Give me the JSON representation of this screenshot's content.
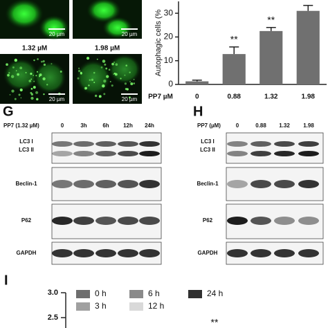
{
  "micrographs": {
    "labels": [
      "1.32 µM",
      "1.98 µM"
    ],
    "scale_bar": "20 µm"
  },
  "chart_data": [
    {
      "type": "bar",
      "y_label": "Autophagic cells (%",
      "x_label": "PP7 µM",
      "categories": [
        "0",
        "0.88",
        "1.32",
        "1.98"
      ],
      "values": [
        1.3,
        12.8,
        22.5,
        31
      ],
      "errors": [
        0.5,
        3,
        1.5,
        2.3
      ],
      "significance": [
        null,
        "**",
        "**",
        null
      ],
      "color": "#707070",
      "ylim": [
        0,
        35
      ],
      "yticks": [
        0,
        10,
        20,
        30
      ]
    },
    {
      "type": "bar",
      "panel": "I",
      "series": [
        {
          "name": "0 h",
          "color": "#6e6e6e"
        },
        {
          "name": "3 h",
          "color": "#a0a0a0"
        },
        {
          "name": "6 h",
          "color": "#8a8a8a"
        },
        {
          "name": "12 h",
          "color": "#d9d9d9"
        },
        {
          "name": "24 h",
          "color": "#303030"
        }
      ],
      "annotations": [
        "**"
      ],
      "ylim": [
        2.3,
        3.0
      ],
      "yticks": [
        {
          "value": 3.0,
          "label": "3.0"
        },
        {
          "value": 2.5,
          "label": "2.5"
        }
      ]
    }
  ],
  "blots": [
    {
      "panel": "G",
      "treatment": "PP7 (1.32 µM)",
      "lanes": [
        "0",
        "3h",
        "6h",
        "12h",
        "24h"
      ],
      "proteins": [
        "LC3 I",
        "LC3 II",
        "Beclin-1",
        "P62",
        "GAPDH"
      ]
    },
    {
      "panel": "H",
      "treatment": "PP7 (µM)",
      "lanes": [
        "0",
        "0.88",
        "1.32",
        "1.98"
      ],
      "proteins": [
        "LC3 I",
        "LC3 II",
        "Beclin-1",
        "P62",
        "GAPDH"
      ]
    }
  ]
}
